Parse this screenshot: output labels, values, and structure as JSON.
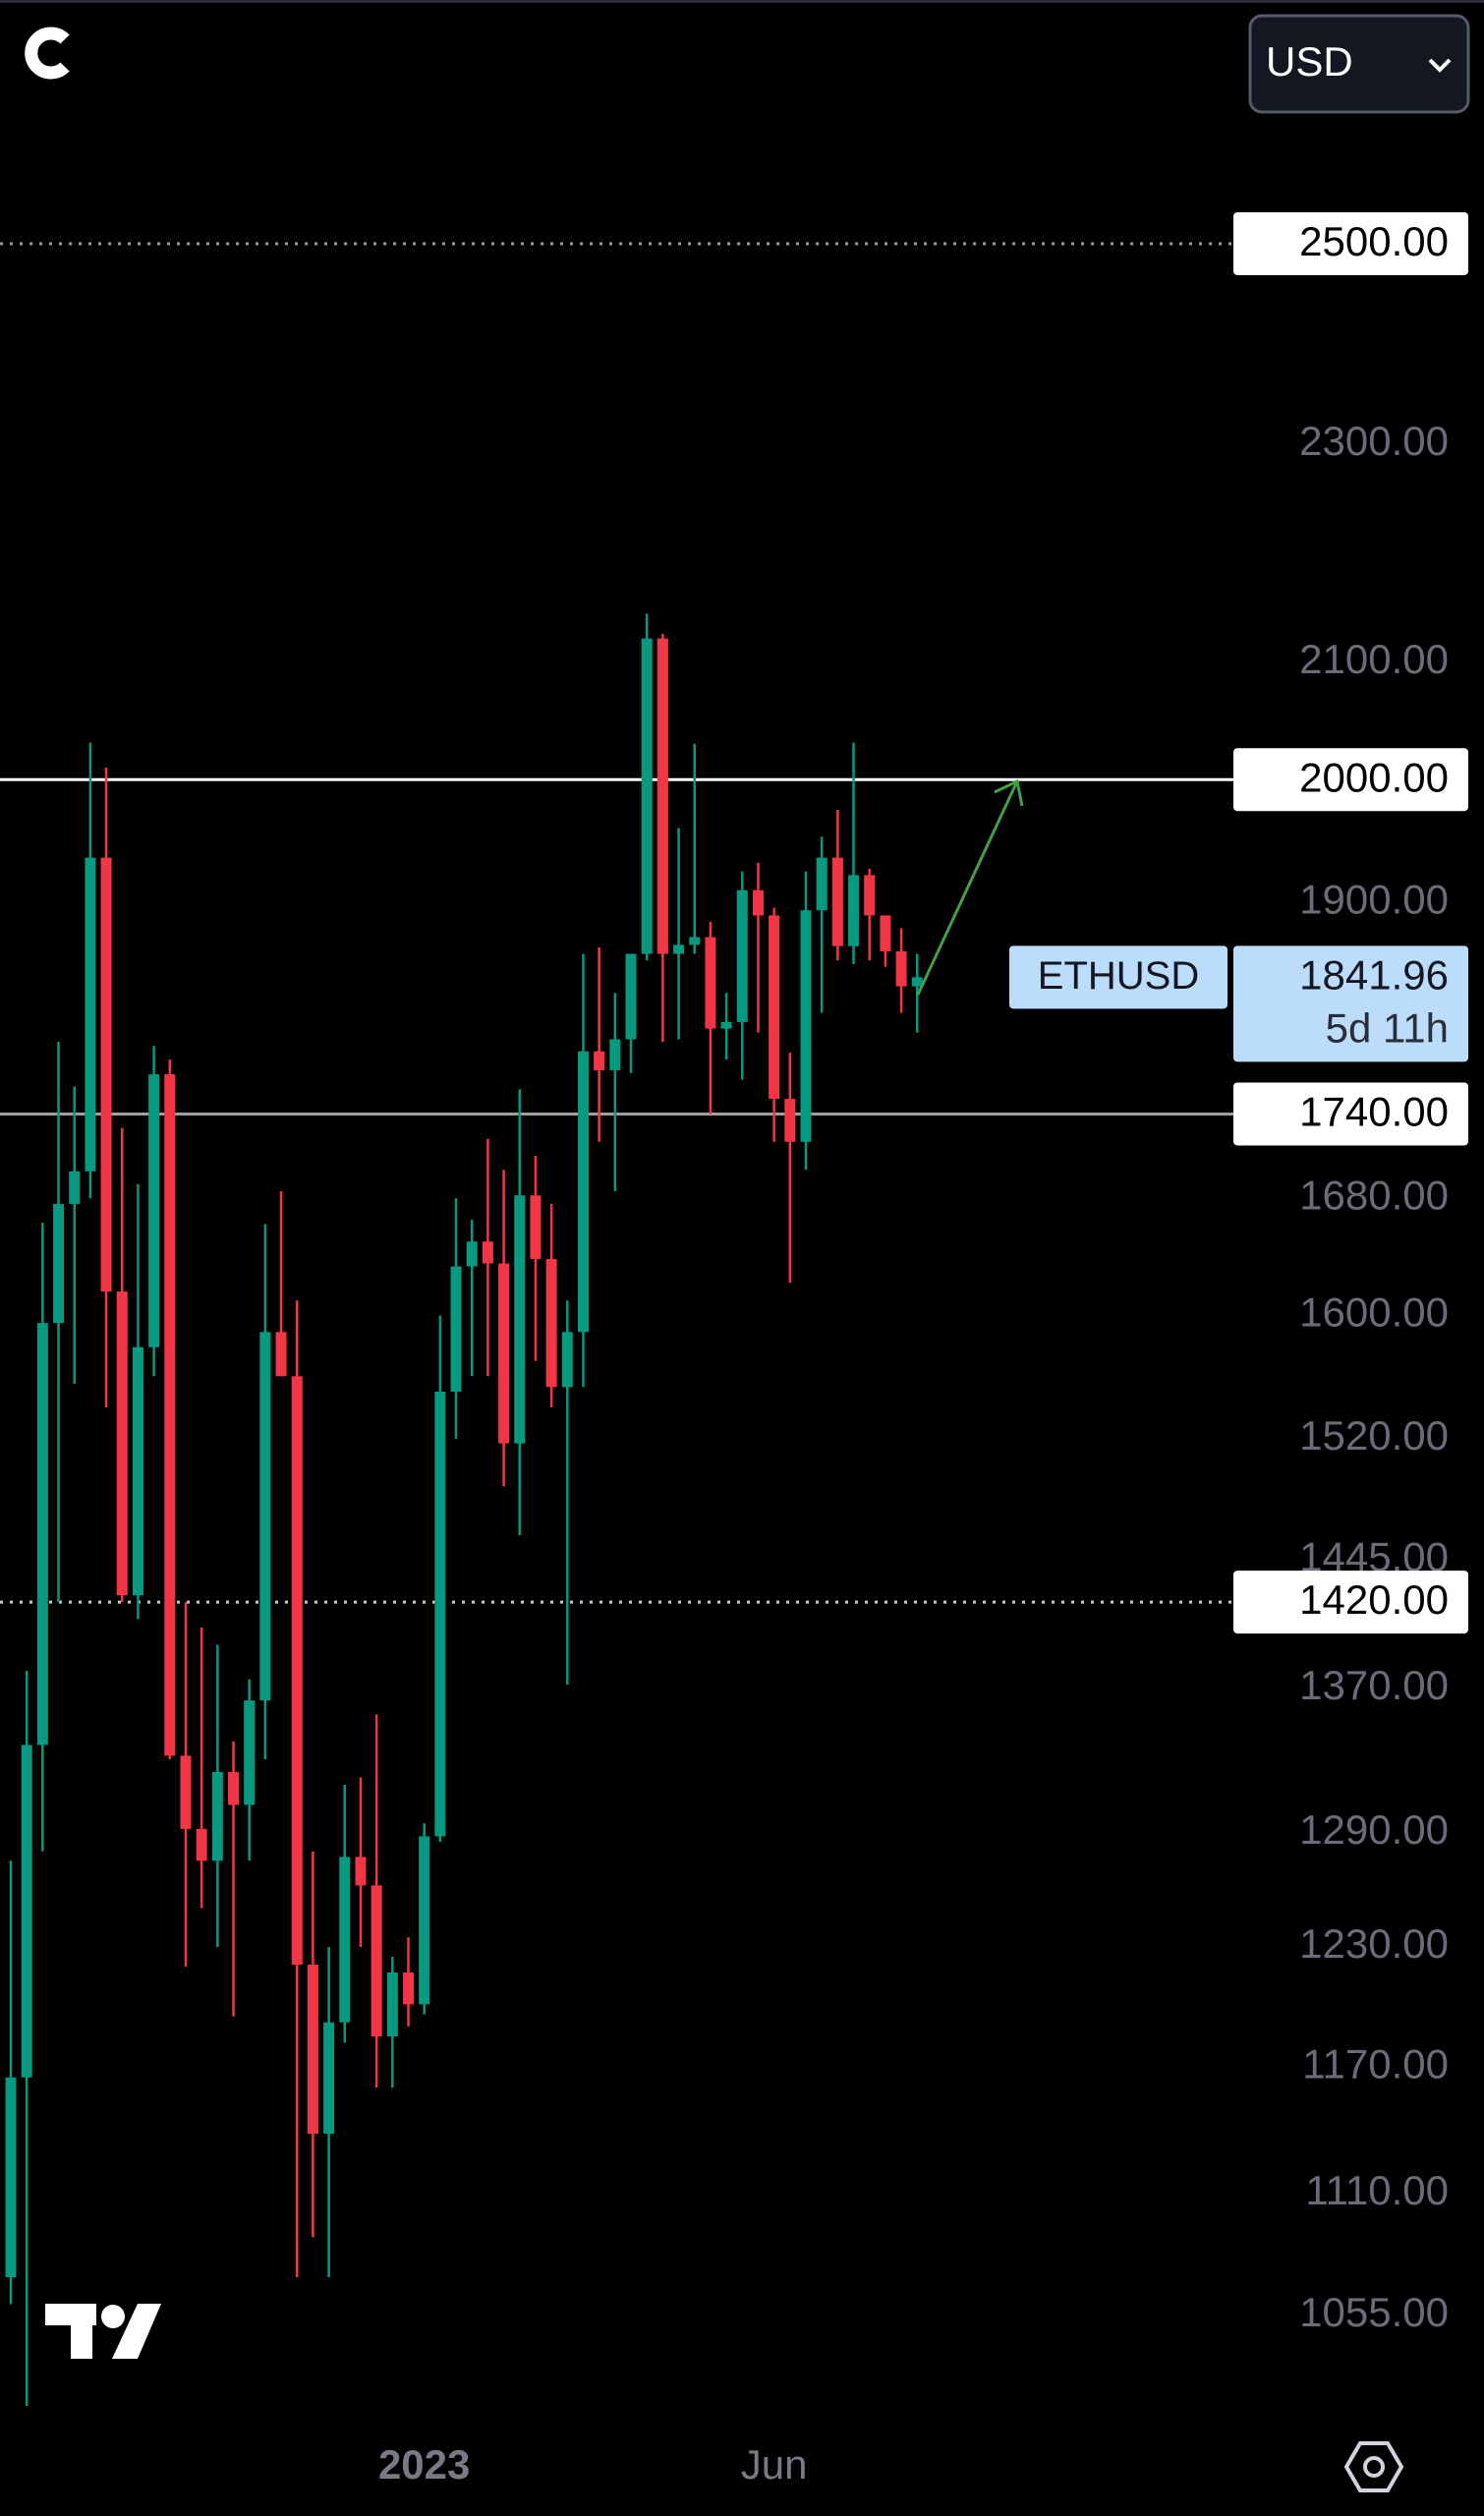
{
  "header": {
    "currency": "USD"
  },
  "chart_data": {
    "type": "candlestick",
    "log_scale": true,
    "up_color": "#089981",
    "down_color": "#f23645",
    "categories": [
      null,
      null,
      null,
      null,
      null,
      null,
      null,
      null,
      null,
      null,
      null,
      null,
      null,
      null,
      null,
      null,
      null,
      null,
      null,
      null,
      null,
      null,
      null,
      null,
      null,
      null,
      "2023",
      null,
      null,
      null,
      null,
      null,
      null,
      null,
      null,
      null,
      null,
      null,
      null,
      null,
      null,
      null,
      null,
      null,
      null,
      null,
      null,
      null,
      "Jun",
      null,
      null,
      null,
      null,
      null,
      null,
      null,
      null,
      null
    ],
    "open": [
      1072,
      1165,
      1338,
      1595,
      1676,
      1699,
      1936,
      1616,
      1424,
      1579,
      1769,
      1332,
      1292,
      1275,
      1323,
      1305,
      1363,
      1589,
      1560,
      1221,
      1138,
      1192,
      1277,
      1262,
      1185,
      1217,
      1201,
      1288,
      1550,
      1633,
      1650,
      1635,
      1517,
      1682,
      1638,
      1553,
      1589,
      1786,
      1772,
      1795,
      1860,
      2121,
      1860,
      1867,
      1873,
      1803,
      1808,
      1910,
      1890,
      1751,
      1720,
      1894,
      1936,
      1866,
      1922,
      1890,
      1862,
      1835
    ],
    "high": [
      1275,
      1380,
      1663,
      1793,
      1760,
      2031,
      2010,
      1730,
      1690,
      1790,
      1780,
      1420,
      1405,
      1395,
      1340,
      1375,
      1662,
      1685,
      1610,
      1280,
      1230,
      1316,
      1320,
      1355,
      1225,
      1235,
      1295,
      1600,
      1680,
      1665,
      1722,
      1700,
      1758,
      1710,
      1676,
      1610,
      1860,
      1865,
      1830,
      1860,
      2143,
      2125,
      1960,
      2030,
      1885,
      1830,
      1925,
      1932,
      1896,
      1785,
      1925,
      1953,
      1975,
      2031,
      1927,
      1890,
      1880,
      1860
    ],
    "low": [
      1060,
      1016,
      1280,
      1420,
      1555,
      1680,
      1540,
      1420,
      1410,
      1560,
      1330,
      1220,
      1250,
      1230,
      1195,
      1275,
      1330,
      1560,
      1072,
      1090,
      1072,
      1182,
      1230,
      1160,
      1160,
      1190,
      1196,
      1285,
      1520,
      1560,
      1560,
      1490,
      1460,
      1570,
      1540,
      1372,
      1553,
      1720,
      1685,
      1770,
      1855,
      1793,
      1795,
      1860,
      1740,
      1780,
      1765,
      1800,
      1720,
      1622,
      1700,
      1815,
      1855,
      1852,
      1855,
      1850,
      1815,
      1800
    ],
    "close": [
      1165,
      1338,
      1595,
      1676,
      1699,
      1936,
      1616,
      1424,
      1579,
      1769,
      1332,
      1292,
      1275,
      1323,
      1305,
      1363,
      1589,
      1560,
      1221,
      1138,
      1192,
      1277,
      1262,
      1185,
      1217,
      1201,
      1288,
      1550,
      1633,
      1650,
      1635,
      1517,
      1682,
      1638,
      1553,
      1589,
      1786,
      1772,
      1795,
      1860,
      2121,
      1860,
      1867,
      1873,
      1803,
      1808,
      1910,
      1890,
      1751,
      1720,
      1894,
      1936,
      1866,
      1922,
      1890,
      1862,
      1835,
      1841.96
    ],
    "ylim": [
      1009,
      2767
    ],
    "yticks": [
      {
        "value": 2300,
        "label": "2300.00"
      },
      {
        "value": 2100,
        "label": "2100.00"
      },
      {
        "value": 1900,
        "label": "1900.00"
      },
      {
        "value": 1680,
        "label": "1680.00"
      },
      {
        "value": 1600,
        "label": "1600.00"
      },
      {
        "value": 1520,
        "label": "1520.00"
      },
      {
        "value": 1445,
        "label": "1445.00"
      },
      {
        "value": 1370,
        "label": "1370.00"
      },
      {
        "value": 1290,
        "label": "1290.00"
      },
      {
        "value": 1230,
        "label": "1230.00"
      },
      {
        "value": 1170,
        "label": "1170.00"
      },
      {
        "value": 1110,
        "label": "1110.00"
      },
      {
        "value": 1055,
        "label": "1055.00"
      }
    ],
    "levels": [
      {
        "value": 2500,
        "label": "2500.00",
        "style": "dotted",
        "color": "#9a9a9a"
      },
      {
        "value": 2000,
        "label": "2000.00",
        "style": "solid",
        "color": "#ffffff"
      },
      {
        "value": 1740,
        "label": "1740.00",
        "style": "solid",
        "color": "#a0a0a0"
      },
      {
        "value": 1420,
        "label": "1420.00",
        "style": "dotted",
        "color": "#c8c8c8"
      }
    ],
    "last_price": {
      "symbol": "ETHUSD",
      "value": 1841.96,
      "countdown": "5d 11h",
      "color": "#bcdcfc"
    }
  }
}
